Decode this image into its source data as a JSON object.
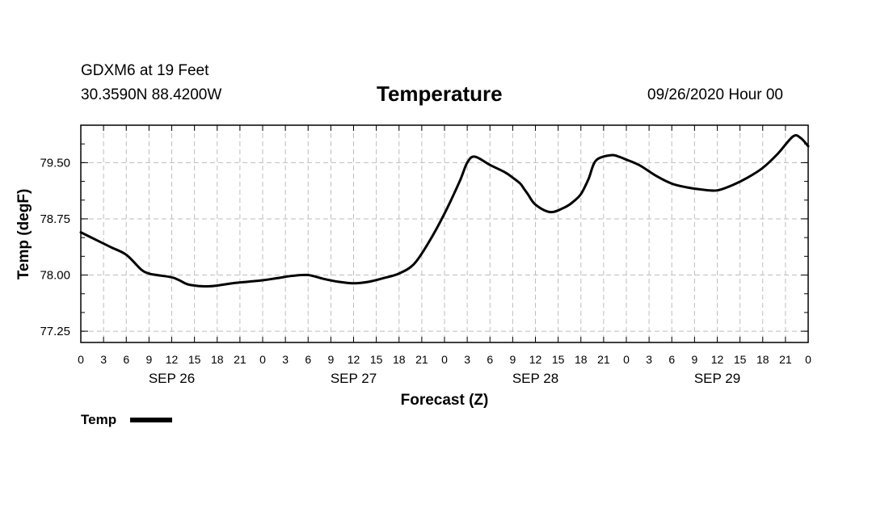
{
  "header": {
    "station": "GDXM6 at 19 Feet",
    "coords": "30.3590N 88.4200W",
    "run": "09/26/2020 Hour 00"
  },
  "legend": {
    "label": "Temp"
  },
  "colors": {
    "line": "#000000",
    "grid": "#bdbdbd",
    "background": "#ffffff"
  },
  "chart_data": {
    "type": "line",
    "title": "Temperature",
    "xlabel": "Forecast (Z)",
    "ylabel": "Temp (degF)",
    "x_unit": "forecast hour",
    "xlim": [
      0,
      96
    ],
    "ylim": [
      77.1,
      80.0
    ],
    "yticks": [
      77.25,
      78.0,
      78.75,
      79.5
    ],
    "ytick_labels": [
      "77.25",
      "78.00",
      "78.75",
      "79.50"
    ],
    "xticks": [
      0,
      3,
      6,
      9,
      12,
      15,
      18,
      21,
      24,
      27,
      30,
      33,
      36,
      39,
      42,
      45,
      48,
      51,
      54,
      57,
      60,
      63,
      66,
      69,
      72,
      75,
      78,
      81,
      84,
      87,
      90,
      93,
      96
    ],
    "xtick_labels": [
      "0",
      "3",
      "6",
      "9",
      "12",
      "15",
      "18",
      "21",
      "0",
      "3",
      "6",
      "9",
      "12",
      "15",
      "18",
      "21",
      "0",
      "3",
      "6",
      "9",
      "12",
      "15",
      "18",
      "21",
      "0",
      "3",
      "6",
      "9",
      "12",
      "15",
      "18",
      "21",
      "0"
    ],
    "day_labels": [
      {
        "label": "SEP 26",
        "center_hour": 12
      },
      {
        "label": "SEP 27",
        "center_hour": 36
      },
      {
        "label": "SEP 28",
        "center_hour": 60
      },
      {
        "label": "SEP 29",
        "center_hour": 84
      }
    ],
    "grid": true,
    "legend_position": "bottom-left",
    "series": [
      {
        "name": "Temp",
        "x": [
          0,
          2,
          4,
          6,
          8,
          9,
          10,
          12,
          13,
          14,
          15,
          16,
          17,
          18,
          20,
          22,
          24,
          26,
          28,
          30,
          32,
          34,
          36,
          38,
          40,
          42,
          44,
          46,
          48,
          50,
          51,
          52,
          54,
          56,
          57,
          58,
          58.5,
          59,
          60,
          62,
          64,
          65,
          66,
          67,
          68,
          70,
          71,
          72,
          73,
          74,
          76,
          78,
          80,
          82,
          84,
          86,
          88,
          90,
          92,
          94,
          95,
          96
        ],
        "y": [
          78.57,
          78.47,
          78.37,
          78.27,
          78.07,
          78.02,
          78.0,
          77.97,
          77.93,
          77.88,
          77.86,
          77.85,
          77.85,
          77.86,
          77.89,
          77.91,
          77.93,
          77.96,
          77.99,
          78.0,
          77.95,
          77.91,
          77.89,
          77.91,
          77.96,
          78.02,
          78.15,
          78.45,
          78.82,
          79.25,
          79.5,
          79.58,
          79.47,
          79.37,
          79.3,
          79.22,
          79.15,
          79.08,
          78.94,
          78.84,
          78.91,
          78.98,
          79.08,
          79.28,
          79.53,
          79.6,
          79.58,
          79.54,
          79.5,
          79.45,
          79.32,
          79.22,
          79.17,
          79.14,
          79.13,
          79.2,
          79.3,
          79.43,
          79.62,
          79.85,
          79.83,
          79.72
        ]
      }
    ]
  }
}
